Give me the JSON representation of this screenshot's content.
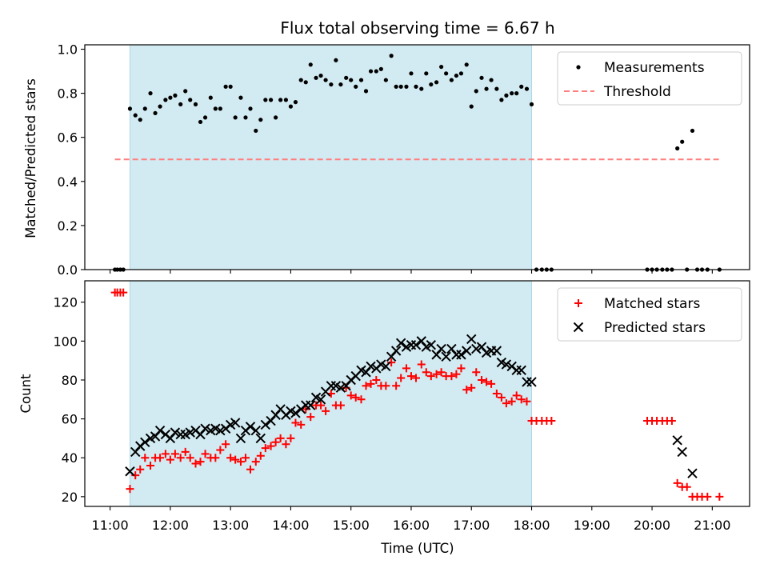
{
  "chart_data": [
    {
      "type": "scatter",
      "title": "Flux total observing time = 6.67 h",
      "xlabel": "",
      "ylabel": "Matched/Predicted stars",
      "xlim": [
        10.58,
        21.62
      ],
      "ylim": [
        0.0,
        1.02
      ],
      "yticks": [
        0.0,
        0.2,
        0.4,
        0.6,
        0.8,
        1.0
      ],
      "ytick_labels": [
        "0.0",
        "0.2",
        "0.4",
        "0.6",
        "0.8",
        "1.0"
      ],
      "xticks": [
        11,
        12,
        13,
        14,
        15,
        16,
        17,
        18,
        19,
        20,
        21
      ],
      "shaded_span": [
        11.33,
        18.0
      ],
      "shade_color": "#add8e6",
      "legend": {
        "position": "upper right",
        "entries": [
          "Measurements",
          "Threshold"
        ]
      },
      "threshold": {
        "name": "Threshold",
        "value": 0.5,
        "x_range": [
          11.08,
          21.12
        ],
        "color": "#ff7f7f"
      },
      "series": [
        {
          "name": "Measurements",
          "marker": "dot",
          "color": "#000000",
          "x": [
            11.08,
            11.12,
            11.17,
            11.22,
            11.33,
            11.42,
            11.5,
            11.58,
            11.67,
            11.75,
            11.83,
            11.92,
            12.0,
            12.08,
            12.17,
            12.25,
            12.33,
            12.42,
            12.5,
            12.58,
            12.67,
            12.75,
            12.83,
            12.92,
            13.0,
            13.08,
            13.17,
            13.25,
            13.33,
            13.42,
            13.5,
            13.58,
            13.67,
            13.75,
            13.83,
            13.92,
            14.0,
            14.08,
            14.17,
            14.25,
            14.33,
            14.42,
            14.5,
            14.58,
            14.67,
            14.75,
            14.83,
            14.92,
            15.0,
            15.08,
            15.17,
            15.25,
            15.33,
            15.42,
            15.5,
            15.58,
            15.67,
            15.75,
            15.83,
            15.92,
            16.0,
            16.08,
            16.17,
            16.25,
            16.33,
            16.42,
            16.5,
            16.58,
            16.67,
            16.75,
            16.83,
            16.92,
            17.0,
            17.08,
            17.17,
            17.25,
            17.33,
            17.42,
            17.5,
            17.58,
            17.67,
            17.75,
            17.83,
            17.92,
            18.0,
            18.08,
            18.17,
            18.25,
            18.33,
            19.92,
            20.0,
            20.08,
            20.17,
            20.25,
            20.33,
            20.42,
            20.5,
            20.58,
            20.67,
            20.75,
            20.83,
            20.92,
            21.12
          ],
          "y": [
            0.0,
            0.0,
            0.0,
            0.0,
            0.73,
            0.7,
            0.68,
            0.73,
            0.8,
            0.71,
            0.74,
            0.77,
            0.78,
            0.79,
            0.75,
            0.81,
            0.77,
            0.75,
            0.67,
            0.69,
            0.78,
            0.73,
            0.73,
            0.83,
            0.83,
            0.69,
            0.78,
            0.69,
            0.73,
            0.63,
            0.68,
            0.77,
            0.77,
            0.69,
            0.77,
            0.77,
            0.74,
            0.76,
            0.86,
            0.85,
            0.93,
            0.87,
            0.88,
            0.86,
            0.84,
            0.95,
            0.84,
            0.87,
            0.86,
            0.83,
            0.86,
            0.81,
            0.9,
            0.9,
            0.91,
            0.86,
            0.97,
            0.83,
            0.83,
            0.83,
            0.89,
            0.83,
            0.82,
            0.89,
            0.84,
            0.85,
            0.92,
            0.89,
            0.86,
            0.88,
            0.89,
            0.93,
            0.74,
            0.81,
            0.87,
            0.82,
            0.86,
            0.82,
            0.77,
            0.79,
            0.8,
            0.8,
            0.83,
            0.82,
            0.75,
            0.0,
            0.0,
            0.0,
            0.0,
            0.0,
            0.0,
            0.0,
            0.0,
            0.0,
            0.0,
            0.55,
            0.58,
            0.0,
            0.63,
            0.0,
            0.0,
            0.0,
            0.0
          ]
        }
      ]
    },
    {
      "type": "scatter",
      "title": "",
      "xlabel": "Time (UTC)",
      "ylabel": "Count",
      "xlim": [
        10.58,
        21.62
      ],
      "ylim": [
        15,
        131
      ],
      "yticks": [
        20,
        40,
        60,
        80,
        100,
        120
      ],
      "ytick_labels": [
        "20",
        "40",
        "60",
        "80",
        "100",
        "120"
      ],
      "xticks": [
        11,
        12,
        13,
        14,
        15,
        16,
        17,
        18,
        19,
        20,
        21
      ],
      "xtick_labels": [
        "11:00",
        "12:00",
        "13:00",
        "14:00",
        "15:00",
        "16:00",
        "17:00",
        "18:00",
        "19:00",
        "20:00",
        "21:00"
      ],
      "shaded_span": [
        11.33,
        18.0
      ],
      "shade_color": "#add8e6",
      "legend": {
        "position": "upper right",
        "entries": [
          "Matched stars",
          "Predicted stars"
        ]
      },
      "series": [
        {
          "name": "Matched stars",
          "marker": "plus",
          "color": "#ff0000",
          "x": [
            11.08,
            11.12,
            11.17,
            11.22,
            11.33,
            11.42,
            11.5,
            11.58,
            11.67,
            11.75,
            11.83,
            11.92,
            12.0,
            12.08,
            12.17,
            12.25,
            12.33,
            12.42,
            12.5,
            12.58,
            12.67,
            12.75,
            12.83,
            12.92,
            13.0,
            13.08,
            13.17,
            13.25,
            13.33,
            13.42,
            13.5,
            13.58,
            13.67,
            13.75,
            13.83,
            13.92,
            14.0,
            14.08,
            14.17,
            14.25,
            14.33,
            14.42,
            14.5,
            14.58,
            14.67,
            14.75,
            14.83,
            14.92,
            15.0,
            15.08,
            15.17,
            15.25,
            15.33,
            15.42,
            15.5,
            15.58,
            15.67,
            15.75,
            15.83,
            15.92,
            16.0,
            16.08,
            16.17,
            16.25,
            16.33,
            16.42,
            16.5,
            16.58,
            16.67,
            16.75,
            16.83,
            16.92,
            17.0,
            17.08,
            17.17,
            17.25,
            17.33,
            17.42,
            17.5,
            17.58,
            17.67,
            17.75,
            17.83,
            17.92,
            18.0,
            18.08,
            18.17,
            18.25,
            18.33,
            19.92,
            20.0,
            20.08,
            20.17,
            20.25,
            20.33,
            20.42,
            20.5,
            20.58,
            20.67,
            20.75,
            20.83,
            20.92,
            21.12
          ],
          "y": [
            125,
            125,
            125,
            125,
            24,
            31,
            34,
            40,
            36,
            40,
            40,
            42,
            39,
            42,
            40,
            43,
            40,
            37,
            38,
            42,
            40,
            40,
            44,
            47,
            40,
            39,
            38,
            40,
            34,
            38,
            41,
            45,
            46,
            48,
            50,
            47,
            50,
            58,
            57,
            65,
            61,
            67,
            67,
            64,
            73,
            67,
            67,
            76,
            72,
            71,
            70,
            77,
            78,
            80,
            77,
            77,
            89,
            77,
            81,
            86,
            82,
            81,
            88,
            84,
            82,
            83,
            84,
            82,
            82,
            83,
            86,
            75,
            76,
            84,
            80,
            79,
            78,
            73,
            71,
            68,
            69,
            72,
            70,
            69,
            59,
            59,
            59,
            59,
            59,
            59,
            59,
            59,
            59,
            59,
            59,
            27,
            25,
            25,
            20,
            20,
            20,
            20,
            20
          ]
        },
        {
          "name": "Predicted stars",
          "marker": "x",
          "color": "#000000",
          "x": [
            11.33,
            11.42,
            11.5,
            11.58,
            11.67,
            11.75,
            11.83,
            11.92,
            12.0,
            12.08,
            12.17,
            12.25,
            12.33,
            12.42,
            12.5,
            12.58,
            12.67,
            12.75,
            12.83,
            12.92,
            13.0,
            13.08,
            13.17,
            13.25,
            13.33,
            13.42,
            13.5,
            13.58,
            13.67,
            13.75,
            13.83,
            13.92,
            14.0,
            14.08,
            14.17,
            14.25,
            14.33,
            14.42,
            14.5,
            14.58,
            14.67,
            14.75,
            14.83,
            14.92,
            15.0,
            15.08,
            15.17,
            15.25,
            15.33,
            15.42,
            15.5,
            15.58,
            15.67,
            15.75,
            15.83,
            15.92,
            16.0,
            16.08,
            16.17,
            16.25,
            16.33,
            16.42,
            16.5,
            16.58,
            16.67,
            16.75,
            16.83,
            16.92,
            17.0,
            17.08,
            17.17,
            17.25,
            17.33,
            17.42,
            17.5,
            17.58,
            17.67,
            17.75,
            17.83,
            17.92,
            18.0,
            20.42,
            20.5,
            20.67
          ],
          "y": [
            33,
            43,
            46,
            48,
            50,
            51,
            54,
            52,
            50,
            53,
            52,
            52,
            53,
            54,
            52,
            55,
            54,
            55,
            54,
            55,
            57,
            58,
            50,
            54,
            56,
            54,
            50,
            57,
            59,
            62,
            65,
            62,
            64,
            63,
            65,
            67,
            67,
            71,
            70,
            74,
            77,
            77,
            76,
            77,
            80,
            82,
            85,
            84,
            87,
            86,
            88,
            87,
            92,
            95,
            99,
            97,
            98,
            98,
            100,
            97,
            98,
            93,
            96,
            92,
            96,
            93,
            93,
            95,
            101,
            96,
            97,
            94,
            95,
            95,
            89,
            88,
            87,
            85,
            85,
            79,
            79,
            49,
            43,
            32
          ]
        }
      ]
    }
  ]
}
